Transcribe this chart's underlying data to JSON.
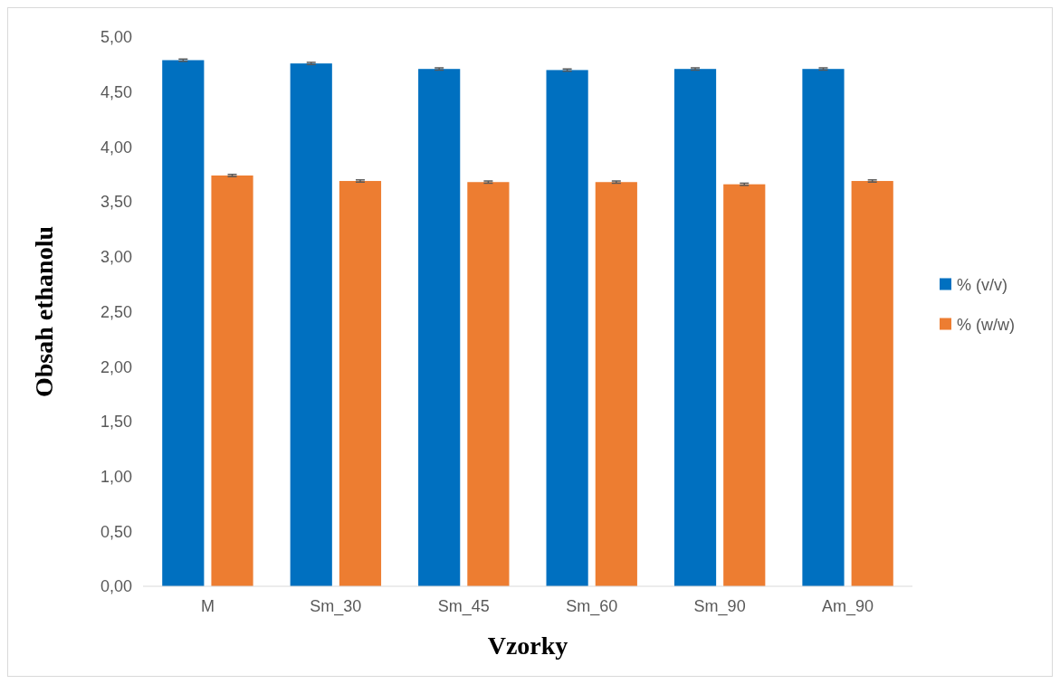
{
  "chart_data": {
    "type": "bar",
    "xlabel": "Vzorky",
    "ylabel": "Obsah ethanolu",
    "categories": [
      "M",
      "Sm_30",
      "Sm_45",
      "Sm_60",
      "Sm_90",
      "Am_90"
    ],
    "series": [
      {
        "name": "% (v/v)",
        "color": "#0070c0",
        "values": [
          4.79,
          4.76,
          4.71,
          4.7,
          4.71,
          4.71
        ],
        "errors": [
          0.01,
          0.01,
          0.01,
          0.01,
          0.01,
          0.01
        ]
      },
      {
        "name": "% (w/w)",
        "color": "#ed7d31",
        "values": [
          3.74,
          3.69,
          3.68,
          3.68,
          3.66,
          3.69
        ],
        "errors": [
          0.01,
          0.01,
          0.01,
          0.01,
          0.01,
          0.01
        ]
      }
    ],
    "ylim": [
      0,
      5
    ],
    "yticks": [
      {
        "value": 0,
        "label": "0,00"
      },
      {
        "value": 0.5,
        "label": "0,50"
      },
      {
        "value": 1,
        "label": "1,00"
      },
      {
        "value": 1.5,
        "label": "1,50"
      },
      {
        "value": 2,
        "label": "2,00"
      },
      {
        "value": 2.5,
        "label": "2,50"
      },
      {
        "value": 3,
        "label": "3,00"
      },
      {
        "value": 3.5,
        "label": "3,50"
      },
      {
        "value": 4,
        "label": "4,00"
      },
      {
        "value": 4.5,
        "label": "4,50"
      },
      {
        "value": 5,
        "label": "5,00"
      }
    ],
    "grid": false,
    "legend": "right"
  }
}
